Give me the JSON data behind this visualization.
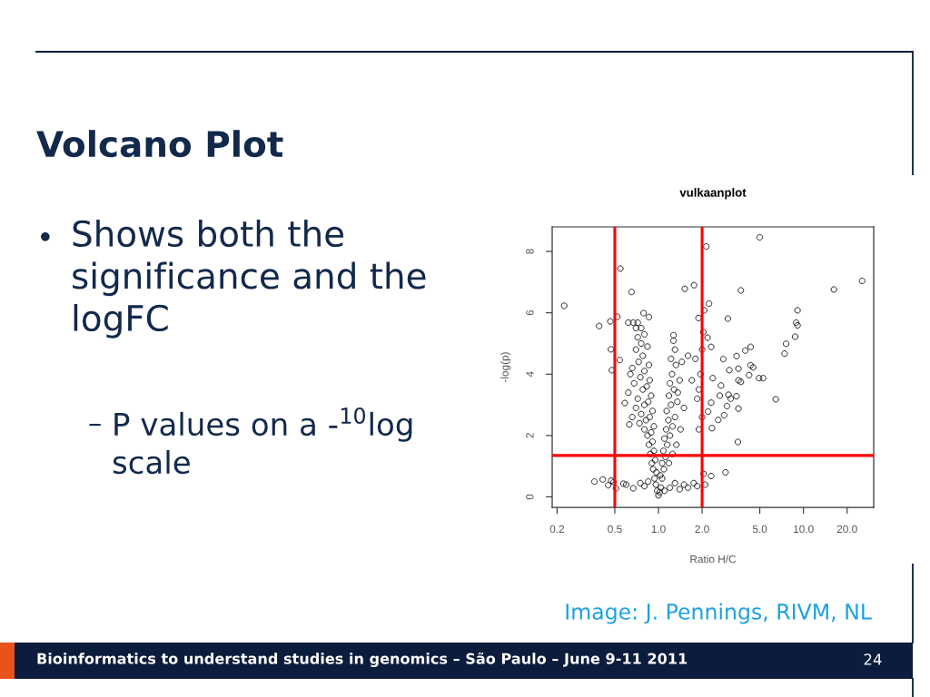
{
  "chart_data": {
    "type": "scatter",
    "title": "vulkaanplot",
    "xlabel": "Ratio H/C",
    "ylabel": "-log(p)",
    "marker": "circle",
    "log": "x",
    "xlim": [
      0.185,
      30.5
    ],
    "xticks": [
      {
        "value": 0.2,
        "label": "0.2"
      },
      {
        "value": 0.5,
        "label": "0.5"
      },
      {
        "value": 1,
        "label": "1.0"
      },
      {
        "value": 2,
        "label": "2.0"
      },
      {
        "value": 5,
        "label": "5.0"
      },
      {
        "value": 10,
        "label": "10.0"
      },
      {
        "value": 20,
        "label": "20.0"
      }
    ],
    "ylim": [
      -0.34,
      8.8
    ],
    "yticks": [
      0,
      2,
      4,
      6,
      8
    ],
    "ref_lines": [
      {
        "axis": "x",
        "value": 0.5,
        "color": "#ff0000"
      },
      {
        "axis": "x",
        "value": 2,
        "color": "#ff0000"
      },
      {
        "axis": "y",
        "value": 1.35,
        "color": "#ff0000"
      }
    ],
    "series": [
      {
        "color": "#000000",
        "x": [
          0.224,
          0.546,
          0.652,
          1.52,
          1.76,
          0.39,
          0.466,
          0.52,
          0.79,
          0.86,
          0.62,
          0.67,
          0.72,
          1.27,
          1.27,
          1.89,
          0.47,
          0.54,
          4.99,
          2.14,
          25.4,
          16.2,
          3.7,
          2.23,
          2.07,
          9.1,
          3.01,
          8.9,
          9.1,
          8.77,
          7.59,
          7.41,
          4.32,
          3.97,
          3.46,
          2.8,
          2.31,
          2.18,
          2.04,
          4.32,
          4.5,
          3.08,
          3.56,
          4.94,
          5.28,
          6.44,
          4.22,
          3.56,
          3.7,
          2.7,
          2.37,
          2.65,
          3.04,
          3.15,
          3.45,
          2.97,
          3.56,
          2.58,
          2.84,
          2.34,
          3.53,
          2.9,
          2.31,
          2.05,
          2.1,
          2.31,
          2.2,
          0.362,
          0.413,
          0.45,
          0.472,
          0.49,
          0.51,
          0.573,
          0.6,
          0.67,
          0.586,
          0.477,
          0.63,
          1.0,
          0.98,
          1.02,
          0.96,
          0.94,
          0.97,
          0.92,
          0.9,
          0.95,
          0.88,
          0.93,
          0.86,
          0.91,
          0.84,
          0.89,
          0.8,
          0.93,
          0.82,
          0.87,
          0.76,
          0.91,
          0.8,
          0.85,
          0.72,
          0.89,
          0.78,
          0.83,
          0.68,
          0.87,
          0.75,
          0.8,
          0.66,
          0.86,
          0.73,
          0.78,
          0.7,
          0.84,
          0.76,
          0.72,
          0.8,
          0.7,
          0.76,
          0.64,
          0.62,
          0.7,
          0.74,
          0.66,
          1.04,
          1.06,
          1.03,
          1.09,
          1.06,
          1.12,
          1.08,
          1.15,
          1.1,
          1.2,
          1.13,
          1.25,
          1.17,
          1.3,
          1.14,
          1.22,
          1.35,
          1.18,
          1.28,
          1.2,
          1.4,
          1.24,
          1.32,
          1.22,
          1.45,
          1.3,
          1.6,
          1.36,
          1.5,
          1.42,
          1.33,
          1.25,
          1.18,
          1.2,
          1.3,
          1.4,
          1.5,
          1.6,
          1.75,
          1.85,
          1.1,
          0.8,
          0.85,
          0.75,
          1.9,
          1.95,
          1.85,
          2.0,
          1.9,
          1.8,
          2.0,
          1.7
        ],
        "values": [
          6.23,
          7.44,
          6.68,
          6.78,
          6.9,
          5.57,
          5.72,
          5.87,
          5.99,
          5.86,
          5.68,
          5.68,
          5.68,
          5.27,
          5.09,
          5.83,
          4.81,
          4.46,
          8.46,
          8.16,
          7.04,
          6.76,
          6.73,
          6.3,
          6.08,
          6.08,
          5.81,
          5.68,
          5.59,
          5.22,
          4.99,
          4.67,
          4.89,
          4.77,
          4.59,
          4.49,
          4.89,
          5.19,
          5.37,
          4.29,
          4.22,
          4.13,
          4.18,
          3.87,
          3.87,
          3.18,
          3.97,
          3.8,
          3.75,
          3.63,
          3.87,
          3.3,
          3.33,
          3.2,
          3.28,
          2.96,
          2.88,
          2.51,
          2.66,
          2.24,
          1.79,
          0.8,
          0.68,
          0.75,
          0.4,
          3.07,
          2.78,
          0.5,
          0.57,
          0.38,
          0.53,
          0.48,
          0.28,
          0.43,
          0.4,
          0.28,
          3.06,
          4.13,
          2.36,
          0.05,
          0.2,
          0.15,
          0.4,
          0.6,
          0.8,
          0.9,
          1.1,
          1.2,
          1.4,
          1.5,
          1.7,
          1.8,
          2.0,
          2.1,
          2.2,
          2.3,
          2.5,
          2.6,
          2.7,
          2.8,
          3.0,
          3.1,
          3.2,
          3.3,
          3.5,
          3.6,
          3.7,
          3.8,
          3.9,
          4.1,
          4.2,
          4.3,
          4.4,
          4.6,
          4.8,
          4.9,
          5.0,
          5.2,
          5.3,
          5.5,
          5.5,
          4.0,
          3.4,
          2.9,
          2.4,
          2.6,
          0.3,
          0.6,
          0.7,
          0.9,
          1.1,
          1.3,
          1.5,
          1.7,
          1.9,
          2.0,
          2.2,
          2.3,
          2.5,
          2.6,
          2.8,
          3.0,
          3.1,
          3.3,
          3.5,
          3.7,
          3.8,
          4.0,
          4.3,
          4.5,
          4.4,
          4.8,
          4.6,
          3.4,
          2.9,
          2.2,
          1.7,
          1.4,
          1.1,
          0.3,
          0.45,
          0.25,
          0.4,
          0.3,
          0.45,
          0.35,
          0.2,
          0.35,
          0.5,
          0.45,
          3.5,
          4.0,
          3.2,
          2.6,
          2.2,
          4.5,
          4.8,
          3.8
        ]
      }
    ],
    "annotations": [
      "Volcano Plot",
      "•",
      "Shows both the\nsignificance and the\nlogFC",
      "–",
      "P values on a -$^{10}$log\nscale",
      "Image: J. Pennings, RIVM, NL",
      "Bioinformatics to understand studies in genomics – São Paulo – June 9-11 2011",
      "24"
    ]
  }
}
